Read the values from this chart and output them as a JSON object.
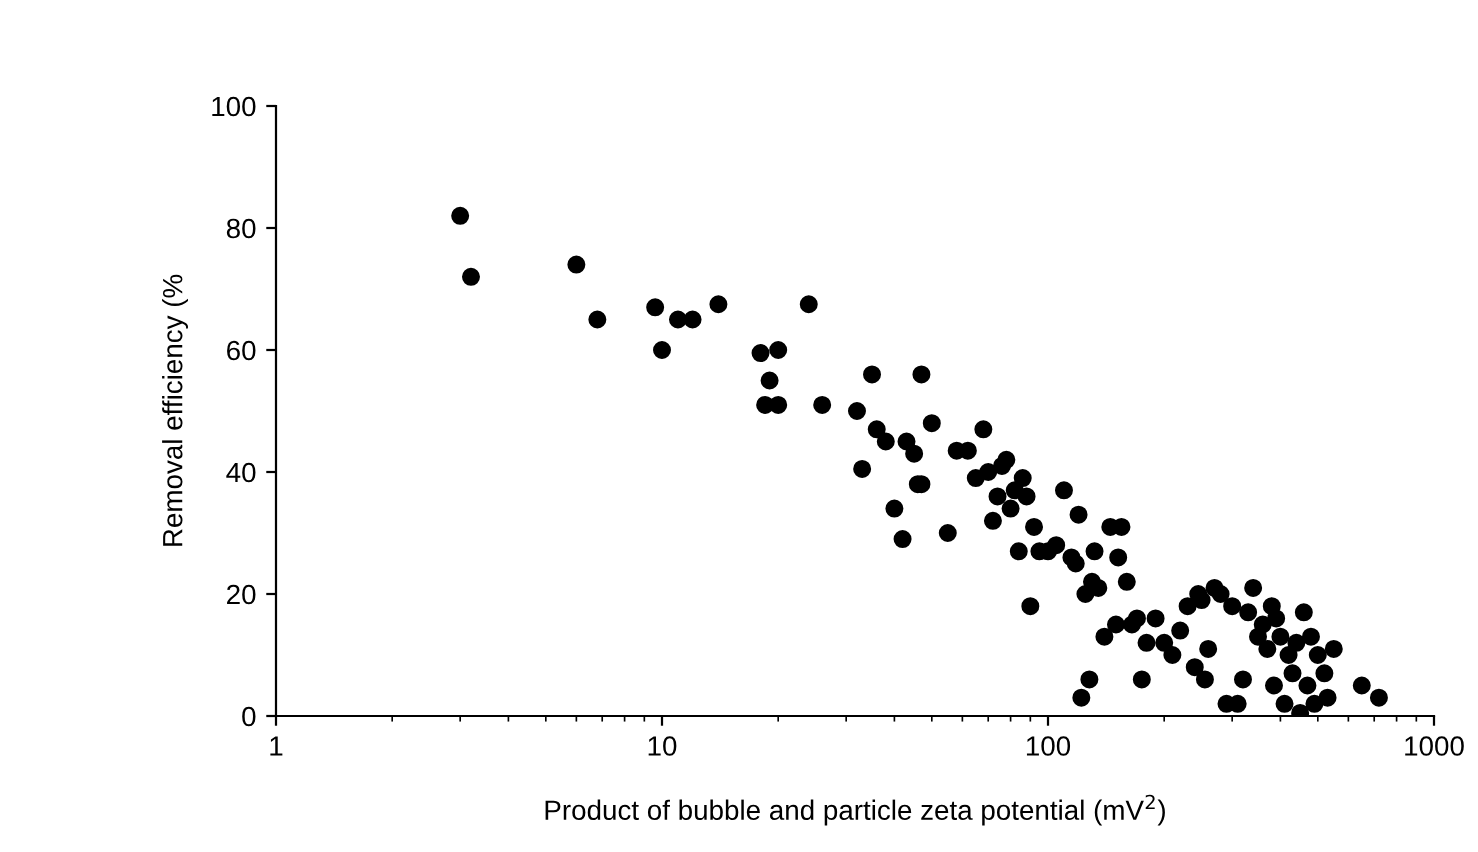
{
  "chart_data": {
    "type": "scatter",
    "xlabel": "Product of bubble and particle zeta potential (mV$^{2}$)",
    "ylabel": "Removal efficiency (%",
    "log": "x",
    "xlim": [
      1,
      1000
    ],
    "xticks": [
      1,
      10,
      100,
      1000
    ],
    "ylim": [
      0,
      100
    ],
    "yticks": [
      0,
      20,
      40,
      60,
      80,
      100
    ],
    "grid": false,
    "marker": "circle",
    "series": [
      {
        "color": "#000000",
        "x": [
          3.0,
          3.2,
          6,
          6.8,
          9.6,
          10,
          11,
          12,
          14,
          18,
          18.5,
          19,
          20,
          20,
          24,
          26,
          32,
          33,
          35,
          36,
          38,
          40,
          42,
          43,
          45,
          46,
          47,
          47,
          50,
          55,
          58,
          62,
          65,
          68,
          70,
          72,
          74,
          76,
          78,
          80,
          82,
          84,
          86,
          88,
          90,
          92,
          95,
          100,
          105,
          110,
          115,
          118,
          120,
          122,
          125,
          128,
          130,
          132,
          135,
          140,
          145,
          150,
          152,
          155,
          160,
          165,
          170,
          175,
          180,
          190,
          200,
          210,
          220,
          230,
          240,
          245,
          250,
          255,
          260,
          270,
          280,
          290,
          300,
          310,
          320,
          330,
          340,
          350,
          360,
          370,
          380,
          385,
          390,
          400,
          410,
          420,
          430,
          440,
          450,
          460,
          470,
          480,
          490,
          500,
          520,
          530,
          550,
          650,
          720
        ],
        "values": [
          82,
          72,
          74,
          65,
          67,
          60,
          65,
          65,
          67.5,
          59.5,
          51,
          55,
          60,
          51,
          67.5,
          51,
          50,
          40.5,
          56,
          47,
          45,
          34,
          29,
          45,
          43,
          38,
          56,
          38,
          48,
          30,
          43.5,
          43.5,
          39,
          47,
          40,
          32,
          36,
          41,
          42,
          34,
          37,
          27,
          39,
          36,
          18,
          31,
          27,
          27,
          28,
          37,
          26,
          25,
          33,
          3,
          20,
          6,
          22,
          27,
          21,
          13,
          31,
          15,
          26,
          31,
          22,
          15,
          16,
          6,
          12,
          16,
          12,
          10,
          14,
          18,
          8,
          20,
          19,
          6,
          11,
          21,
          20,
          2,
          18,
          2,
          6,
          17,
          21,
          13,
          15,
          11,
          18,
          5,
          16,
          13,
          2,
          10,
          7,
          12,
          0.5,
          17,
          5,
          13,
          2,
          10,
          7,
          3,
          11,
          5,
          3
        ]
      }
    ]
  }
}
